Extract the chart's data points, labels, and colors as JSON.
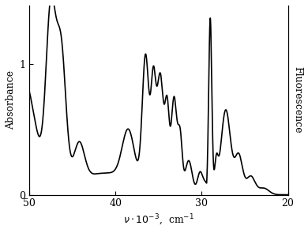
{
  "ylabel_left": "Absorbance",
  "ylabel_right": "Fluorescence",
  "xlim_left": 50,
  "xlim_right": 20,
  "ylim": [
    0,
    1.45
  ],
  "xticks": [
    50,
    40,
    30,
    20
  ],
  "yticks": [
    0,
    1
  ],
  "background_color": "#ffffff",
  "line_color": "#000000",
  "linewidth": 1.2
}
